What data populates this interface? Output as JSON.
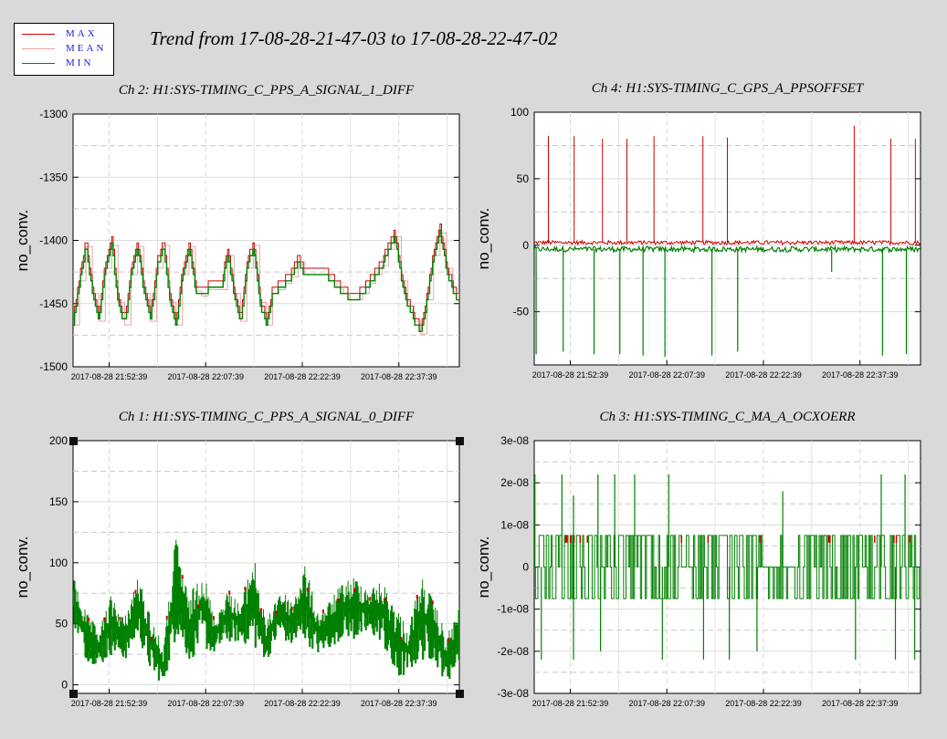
{
  "title": "Trend from 17-08-28-21-47-03 to 17-08-28-22-47-02",
  "legend": [
    {
      "label": "MAX",
      "color": "#cc0000"
    },
    {
      "label": "MEAN",
      "color": "#e8a0a0"
    },
    {
      "label": "MIN",
      "color": "#008000"
    }
  ],
  "colors": {
    "max": "#cc0000",
    "mean": "#d47070",
    "min": "#008000",
    "background": "#d9d9d9",
    "plot_bg": "#ffffff",
    "grid": "#d0d0d0"
  },
  "chart_data": [
    {
      "type": "line",
      "title": "Ch 2: H1:SYS-TIMING_C_PPS_A_SIGNAL_1_DIFF",
      "ylabel": "no_conv.",
      "ylim": [
        -1500,
        -1300
      ],
      "y_ticks": [
        "-1300",
        "-1350",
        "-1400",
        "-1450",
        "-1500"
      ],
      "y_tick_values": [
        -1300,
        -1350,
        -1400,
        -1450,
        -1500
      ],
      "x_ticks": [
        "2017-08-28 21:52:39",
        "2017-08-28 22:07:39",
        "2017-08-28 22:22:39",
        "2017-08-28 22:37:39"
      ],
      "x_tick_minutes": [
        5.6,
        20.6,
        35.6,
        50.6
      ],
      "xlim_minutes": [
        0,
        60
      ],
      "grid": true,
      "series": [
        {
          "name": "MAX",
          "x_minutes": [
            0,
            1,
            2,
            3,
            4,
            5,
            6,
            7,
            8,
            9,
            10,
            11,
            12,
            13,
            14,
            15,
            16,
            17,
            18,
            19,
            20,
            21,
            22,
            23,
            24,
            25,
            26,
            27,
            28,
            29,
            30,
            31,
            32,
            33,
            34,
            35,
            36,
            37,
            38,
            39,
            40,
            41,
            42,
            43,
            44,
            45,
            46,
            47,
            48,
            49,
            50,
            51,
            52,
            53,
            54,
            55,
            56,
            57,
            58,
            59,
            60
          ],
          "values": [
            -1465,
            -1430,
            -1403,
            -1440,
            -1462,
            -1420,
            -1402,
            -1447,
            -1465,
            -1425,
            -1403,
            -1440,
            -1462,
            -1420,
            -1402,
            -1447,
            -1465,
            -1425,
            -1403,
            -1438,
            -1442,
            -1437,
            -1437,
            -1437,
            -1410,
            -1440,
            -1462,
            -1420,
            -1402,
            -1447,
            -1465,
            -1440,
            -1437,
            -1432,
            -1427,
            -1415,
            -1425,
            -1425,
            -1425,
            -1425,
            -1430,
            -1435,
            -1440,
            -1445,
            -1445,
            -1440,
            -1432,
            -1425,
            -1418,
            -1405,
            -1395,
            -1430,
            -1450,
            -1462,
            -1472,
            -1445,
            -1410,
            -1392,
            -1420,
            -1440,
            -1445
          ]
        },
        {
          "name": "MEAN",
          "x_minutes": [
            0,
            1,
            2,
            3,
            4,
            5,
            6,
            7,
            8,
            9,
            10,
            11,
            12,
            13,
            14,
            15,
            16,
            17,
            18,
            19,
            20,
            21,
            22,
            23,
            24,
            25,
            26,
            27,
            28,
            29,
            30,
            31,
            32,
            33,
            34,
            35,
            36,
            37,
            38,
            39,
            40,
            41,
            42,
            43,
            44,
            45,
            46,
            47,
            48,
            49,
            50,
            51,
            52,
            53,
            54,
            55,
            56,
            57,
            58,
            59,
            60
          ],
          "values": [
            -1467,
            -1432,
            -1405,
            -1442,
            -1464,
            -1422,
            -1404,
            -1449,
            -1467,
            -1427,
            -1405,
            -1442,
            -1464,
            -1422,
            -1404,
            -1449,
            -1467,
            -1427,
            -1405,
            -1440,
            -1444,
            -1439,
            -1439,
            -1439,
            -1412,
            -1442,
            -1464,
            -1422,
            -1404,
            -1449,
            -1467,
            -1442,
            -1439,
            -1434,
            -1429,
            -1417,
            -1427,
            -1427,
            -1427,
            -1427,
            -1432,
            -1437,
            -1442,
            -1447,
            -1447,
            -1442,
            -1434,
            -1427,
            -1420,
            -1407,
            -1397,
            -1432,
            -1452,
            -1464,
            -1474,
            -1447,
            -1412,
            -1394,
            -1422,
            -1442,
            -1447
          ]
        },
        {
          "name": "MIN",
          "x_minutes": [
            0,
            1,
            2,
            3,
            4,
            5,
            6,
            7,
            8,
            9,
            10,
            11,
            12,
            13,
            14,
            15,
            16,
            17,
            18,
            19,
            20,
            21,
            22,
            23,
            24,
            25,
            26,
            27,
            28,
            29,
            30,
            31,
            32,
            33,
            34,
            35,
            36,
            37,
            38,
            39,
            40,
            41,
            42,
            43,
            44,
            45,
            46,
            47,
            48,
            49,
            50,
            51,
            52,
            53,
            54,
            55,
            56,
            57,
            58,
            59,
            60
          ],
          "values": [
            -1468,
            -1435,
            -1408,
            -1445,
            -1467,
            -1425,
            -1407,
            -1452,
            -1470,
            -1430,
            -1408,
            -1445,
            -1467,
            -1425,
            -1407,
            -1452,
            -1474,
            -1430,
            -1408,
            -1443,
            -1447,
            -1442,
            -1442,
            -1442,
            -1415,
            -1445,
            -1467,
            -1425,
            -1407,
            -1452,
            -1470,
            -1445,
            -1442,
            -1437,
            -1432,
            -1420,
            -1430,
            -1430,
            -1430,
            -1430,
            -1435,
            -1440,
            -1445,
            -1452,
            -1452,
            -1445,
            -1437,
            -1430,
            -1423,
            -1410,
            -1400,
            -1435,
            -1455,
            -1467,
            -1477,
            -1450,
            -1415,
            -1397,
            -1425,
            -1445,
            -1450
          ]
        }
      ]
    },
    {
      "type": "line",
      "title": "Ch 4: H1:SYS-TIMING_C_GPS_A_PPSOFFSET",
      "ylabel": "no_conv.",
      "ylim": [
        -90,
        100
      ],
      "y_ticks": [
        "100",
        "50",
        "0",
        "-50"
      ],
      "y_tick_values": [
        100,
        50,
        0,
        -50
      ],
      "x_ticks": [
        "2017-08-28 21:52:39",
        "2017-08-28 22:07:39",
        "2017-08-28 22:22:39",
        "2017-08-28 22:37:39"
      ],
      "x_tick_minutes": [
        5.6,
        20.6,
        35.6,
        50.6
      ],
      "xlim_minutes": [
        0,
        60
      ],
      "grid": true,
      "baseline_max": 2,
      "baseline_min": -3,
      "series": [
        {
          "name": "MAX",
          "x_minutes": [
            2.2,
            6.2,
            10.6,
            14.4,
            18.6,
            26.2,
            30.0,
            49.7,
            55.4,
            59.2
          ],
          "values": [
            82,
            82,
            80,
            80,
            82,
            82,
            81,
            90,
            80,
            80
          ]
        },
        {
          "name": "MIN",
          "x_minutes": [
            0.3,
            4.5,
            9.3,
            13.3,
            16.9,
            20.3,
            27.6,
            31.6,
            46.2,
            54.1,
            57.8
          ],
          "values": [
            -82,
            -80,
            -82,
            -82,
            -83,
            -84,
            -83,
            -80,
            -20,
            -83,
            -82
          ]
        }
      ]
    },
    {
      "type": "line",
      "title": "Ch 1: H1:SYS-TIMING_C_PPS_A_SIGNAL_0_DIFF",
      "ylabel": "no_conv.",
      "ylim": [
        -7,
        200
      ],
      "y_ticks": [
        "200",
        "150",
        "100",
        "50",
        "0"
      ],
      "y_tick_values": [
        200,
        150,
        100,
        50,
        0
      ],
      "x_ticks": [
        "2017-08-28 21:52:39",
        "2017-08-28 22:07:39",
        "2017-08-28 22:22:39",
        "2017-08-28 22:37:39"
      ],
      "x_tick_minutes": [
        5.6,
        20.6,
        35.6,
        50.6
      ],
      "xlim_minutes": [
        0,
        60
      ],
      "grid": true,
      "series": [
        {
          "name": "MAX",
          "x_minutes": [
            0,
            2,
            4,
            6,
            8,
            10,
            12,
            14,
            16,
            18,
            20,
            22,
            24,
            26,
            28,
            30,
            32,
            34,
            36,
            38,
            40,
            42,
            44,
            46,
            48,
            50,
            52,
            54,
            56,
            58,
            60
          ],
          "values": [
            90,
            60,
            45,
            75,
            55,
            90,
            60,
            30,
            125,
            70,
            100,
            55,
            80,
            65,
            110,
            50,
            80,
            70,
            100,
            60,
            70,
            85,
            90,
            80,
            85,
            70,
            45,
            90,
            70,
            40,
            65
          ]
        },
        {
          "name": "MIN",
          "x_minutes": [
            0,
            2,
            4,
            6,
            8,
            10,
            12,
            14,
            16,
            18,
            20,
            22,
            24,
            26,
            28,
            30,
            32,
            34,
            36,
            38,
            40,
            42,
            44,
            46,
            48,
            50,
            52,
            54,
            56,
            58,
            60
          ],
          "values": [
            50,
            20,
            15,
            25,
            20,
            40,
            10,
            0,
            40,
            20,
            30,
            25,
            35,
            35,
            30,
            20,
            40,
            30,
            35,
            25,
            30,
            40,
            35,
            40,
            35,
            0,
            10,
            20,
            20,
            0,
            20
          ]
        }
      ]
    },
    {
      "type": "line",
      "title": "Ch 3: H1:SYS-TIMING_C_MA_A_OCXOERR",
      "ylabel": "no_conv.",
      "ylim": [
        -3e-08,
        3e-08
      ],
      "y_ticks": [
        "3e-08",
        "2e-08",
        "1e-08",
        "0",
        "-1e-08",
        "-2e-08",
        "-3e-08"
      ],
      "y_tick_values": [
        3e-08,
        2e-08,
        1e-08,
        0,
        -1e-08,
        -2e-08,
        -3e-08
      ],
      "x_ticks": [
        "2017-08-28 21:52:39",
        "2017-08-28 22:07:39",
        "2017-08-28 22:22:39",
        "2017-08-28 22:37:39"
      ],
      "x_tick_minutes": [
        5.6,
        20.6,
        35.6,
        50.6
      ],
      "xlim_minutes": [
        0,
        60
      ],
      "grid": true,
      "levels": [
        7.5e-09,
        0,
        -7.5e-09
      ],
      "spikes_up_minutes": [
        0.1,
        4.3,
        6.1,
        9.9,
        12.5,
        15.6,
        20.9,
        38.6,
        53.9,
        57.6
      ],
      "spikes_up_values": [
        2.2e-08,
        2.2e-08,
        1.7e-08,
        2.2e-08,
        2.2e-08,
        2.2e-08,
        2.2e-08,
        1.8e-08,
        2.2e-08,
        2.2e-08
      ],
      "spikes_down_minutes": [
        1.1,
        6.1,
        10.3,
        19.9,
        26.3,
        30.3,
        34.6,
        49.9,
        56.1,
        59.1
      ],
      "spikes_down_values": [
        -2.2e-08,
        -2.2e-08,
        -2e-08,
        -2.2e-08,
        -2.2e-08,
        -2.2e-08,
        -2e-08,
        -2.2e-08,
        -2.2e-08,
        -2.2e-08
      ]
    }
  ]
}
